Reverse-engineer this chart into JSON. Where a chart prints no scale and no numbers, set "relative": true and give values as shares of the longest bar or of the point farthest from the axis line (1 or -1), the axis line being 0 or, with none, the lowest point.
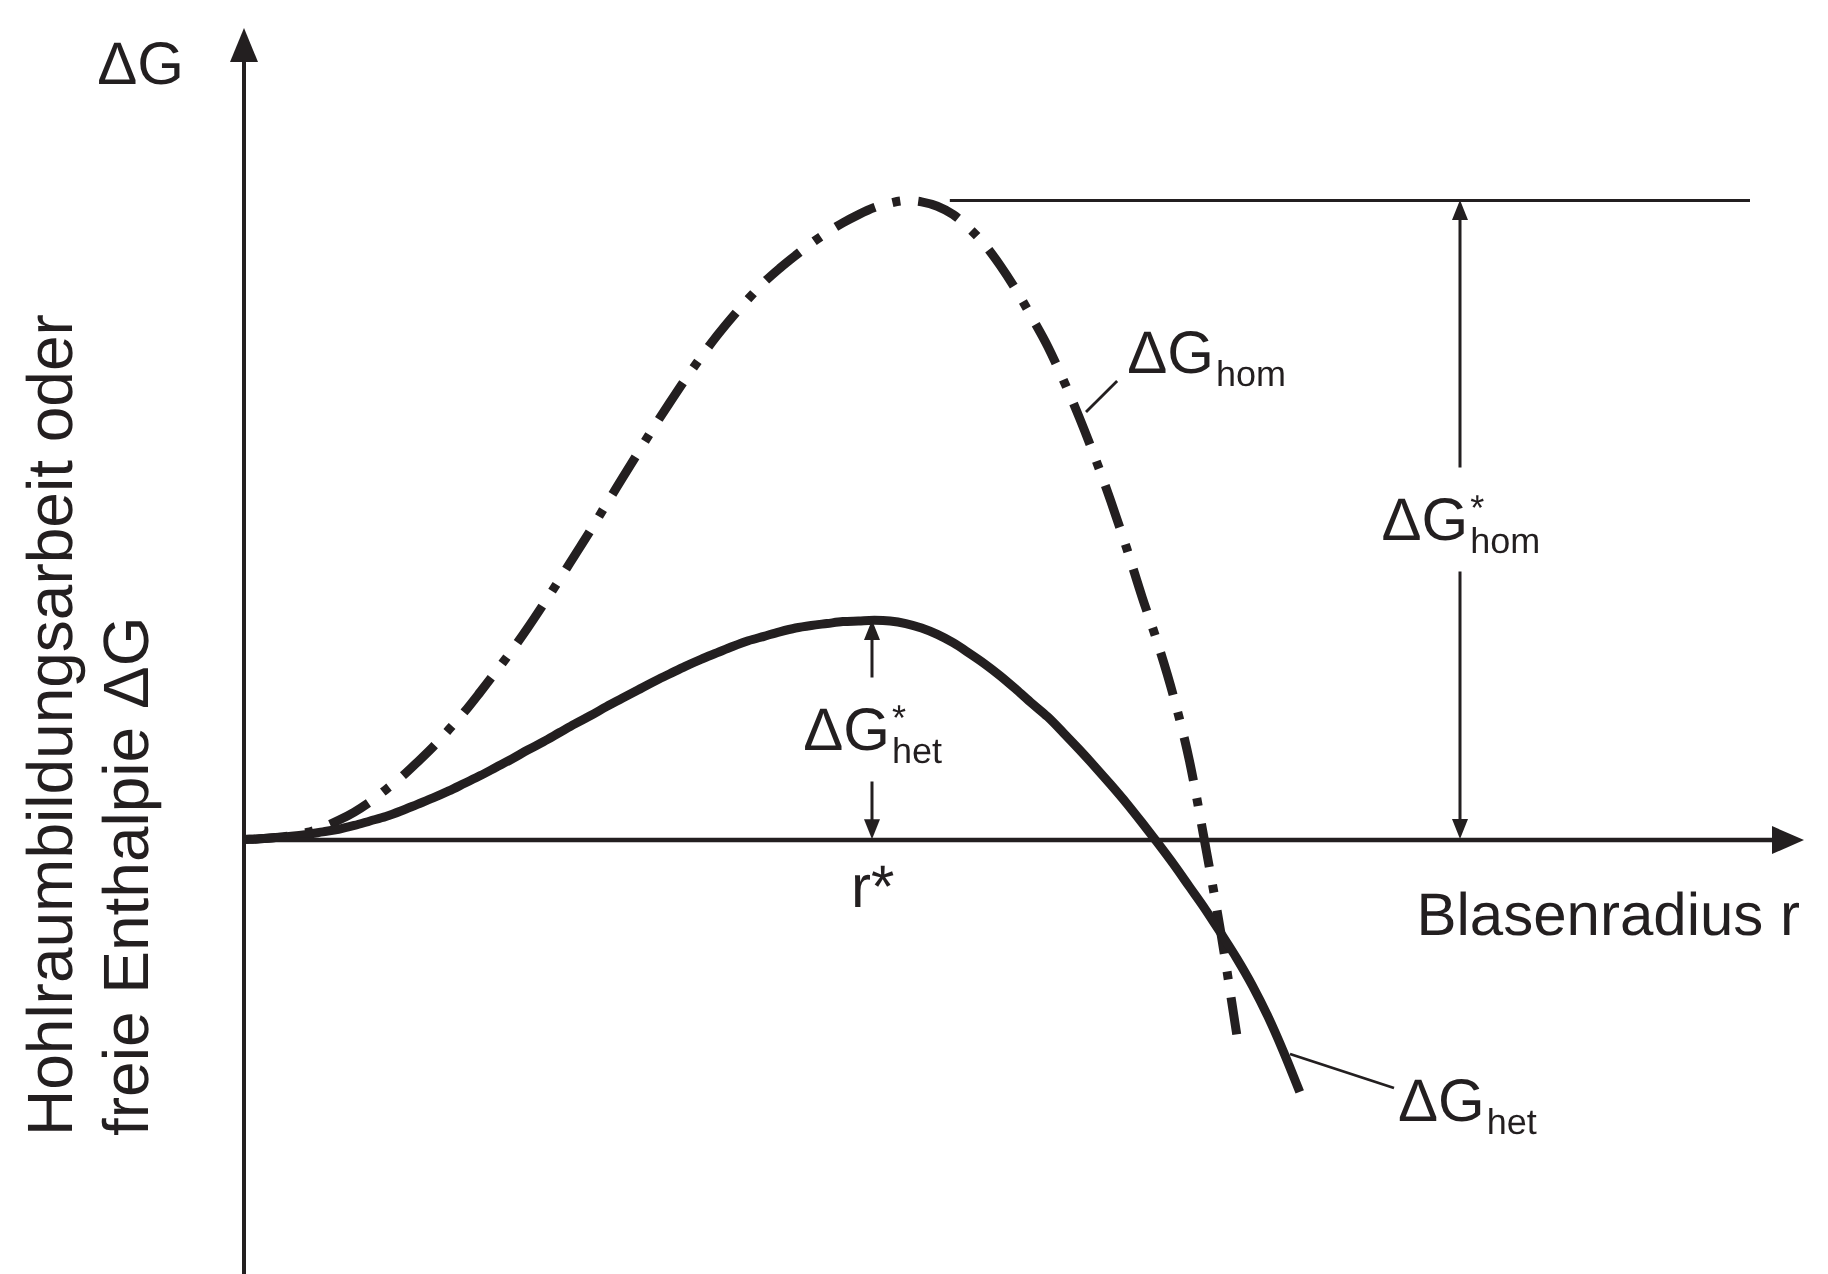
{
  "chart_data": {
    "type": "line",
    "relative": true,
    "legend": "right",
    "xlabel": "Blasenradius r",
    "ylabel": "Hohlraumbildungsarbeit oder freie Enthalpie ΔG",
    "categories": [
      null,
      null,
      null,
      null,
      null,
      null,
      null,
      null,
      null,
      null,
      null,
      null,
      null,
      null,
      null,
      null,
      null,
      null,
      null,
      null,
      null,
      null,
      null,
      null,
      null,
      null,
      null,
      null,
      null,
      null,
      null,
      null,
      null,
      null,
      null,
      null,
      null,
      null,
      null,
      null,
      null,
      null,
      null,
      null,
      null,
      null,
      null,
      null,
      null,
      null,
      null,
      null,
      null,
      null,
      null,
      null,
      null,
      null,
      null,
      null,
      null,
      null,
      null,
      null,
      null,
      null,
      null,
      null,
      null,
      null,
      null,
      null,
      null,
      null,
      null,
      null,
      null,
      null,
      null,
      null,
      null,
      null,
      null,
      null,
      null,
      null,
      null,
      null,
      null,
      null,
      null,
      null,
      null,
      null,
      null,
      null,
      null,
      null,
      null,
      null
    ],
    "series": [
      {
        "name": "ΔG$_{hom}$",
        "color": "#231f20",
        "line_style": "dashed",
        "values": [
          0,
          0.001,
          0.003,
          0.006,
          0.011,
          0.019,
          0.03,
          0.043,
          0.059,
          0.078,
          0.098,
          0.121,
          0.145,
          0.172,
          0.2,
          0.231,
          0.263,
          0.296,
          0.331,
          0.368,
          0.406,
          0.445,
          0.484,
          0.525,
          0.565,
          0.605,
          0.645,
          0.683,
          0.72,
          0.755,
          0.788,
          0.818,
          0.846,
          0.872,
          0.894,
          0.914,
          0.933,
          0.95,
          0.965,
          0.978,
          0.989,
          0.996,
          1,
          0.998,
          0.991,
          0.978,
          0.957,
          0.931,
          0.898,
          0.86,
          0.817,
          0.772,
          0.719,
          0.661,
          0.598,
          0.53,
          0.457,
          0.379,
          0.306,
          0.223,
          0.123,
          -0.008,
          -0.147,
          -0.305,
          null,
          null,
          null,
          null,
          null,
          null,
          null,
          null,
          null,
          null,
          null,
          null,
          null,
          null,
          null,
          null,
          null,
          null,
          null,
          null,
          null,
          null,
          null,
          null,
          null,
          null,
          null,
          null,
          null,
          null,
          null,
          null,
          null,
          null,
          null,
          null
        ]
      },
      {
        "name": "ΔG$_{het}$",
        "color": "#231f20",
        "line_style": "solid",
        "values": [
          0,
          0.001,
          0.003,
          0.005,
          0.008,
          0.012,
          0.016,
          0.022,
          0.029,
          0.036,
          0.045,
          0.055,
          0.065,
          0.076,
          0.088,
          0.1,
          0.113,
          0.126,
          0.14,
          0.153,
          0.167,
          0.181,
          0.194,
          0.208,
          0.221,
          0.234,
          0.247,
          0.259,
          0.271,
          0.282,
          0.292,
          0.302,
          0.311,
          0.318,
          0.325,
          0.331,
          0.335,
          0.338,
          0.341,
          0.342,
          0.343,
          0.342,
          0.338,
          0.331,
          0.321,
          0.308,
          0.292,
          0.275,
          0.256,
          0.235,
          0.213,
          0.192,
          0.167,
          0.141,
          0.114,
          0.086,
          0.057,
          0.026,
          -0.006,
          -0.039,
          -0.074,
          -0.109,
          -0.147,
          -0.186,
          -0.229,
          -0.278,
          -0.334,
          -0.395,
          null,
          null,
          null,
          null,
          null,
          null,
          null,
          null,
          null,
          null,
          null,
          null,
          null,
          null,
          null,
          null,
          null,
          null,
          null,
          null,
          null,
          null,
          null,
          null,
          null,
          null,
          null,
          null,
          null,
          null,
          null,
          null
        ]
      }
    ],
    "ref_lines": [
      {
        "axis": "y",
        "value": 1,
        "color": "#231f20"
      }
    ],
    "annotations": [
      "ΔG",
      {
        "text": "ΔG$^{*}$$_{hom}$",
        "y": 1
      },
      {
        "text": "ΔG$^{*}$$_{het}$",
        "y": 0.343
      },
      "r*"
    ]
  }
}
